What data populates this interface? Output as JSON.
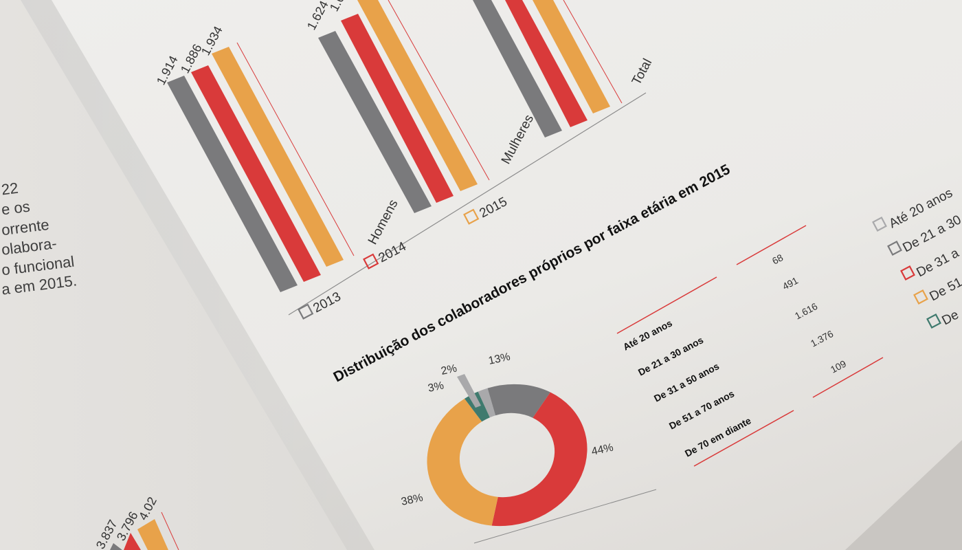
{
  "left_page": {
    "text_lines": [
      "22",
      "e os",
      "orrente",
      "olabora-",
      "o funcional",
      "a em 2015."
    ]
  },
  "bar_chart_top": {
    "chart_data": {
      "type": "bar",
      "categories": [
        "Homens",
        "Mulheres",
        "Total"
      ],
      "series": [
        {
          "name": "2013",
          "values": [
            1914,
            1624,
            null
          ],
          "color": "#7a7a7c"
        },
        {
          "name": "2014",
          "values": [
            1886,
            null,
            null
          ],
          "color": "#d93a3a"
        },
        {
          "name": "2015",
          "values": [
            1934,
            null,
            null
          ],
          "color": "#e8a24a"
        }
      ],
      "data_labels": [
        "1.914",
        "1.886",
        "1.934",
        "1.624",
        "1.6"
      ],
      "legend": [
        "2013",
        "2014",
        "2015"
      ]
    }
  },
  "donut": {
    "title": "Distribuição dos colaboradores próprios por faixa etária em 2015",
    "chart_data": {
      "type": "pie",
      "categories": [
        "Até 20 anos",
        "De 21 a 30 anos",
        "De 31 a 50 anos",
        "De 51 a 70 anos",
        "De 70 em diante"
      ],
      "values": [
        2,
        13,
        44,
        38,
        3
      ],
      "labels": [
        "2%",
        "13%",
        "44%",
        "38%",
        "3%"
      ],
      "colors": [
        "#a9a9ab",
        "#7a7a7c",
        "#d93a3a",
        "#e8a24a",
        "#3f7a6e"
      ]
    }
  },
  "age_table": {
    "rows": [
      {
        "label": "Até 20 anos",
        "value": "68"
      },
      {
        "label": "De 21 a 30 anos",
        "value": "491"
      },
      {
        "label": "De 31 a 50 anos",
        "value": "1.616"
      },
      {
        "label": "De 51 a 70 anos",
        "value": "1.376"
      },
      {
        "label": "De 70 em diante",
        "value": "109"
      }
    ]
  },
  "right_legend": {
    "items": [
      {
        "label": "Até 20 anos",
        "color": "#a9a9ab"
      },
      {
        "label": "De 21 a 30",
        "color": "#7a7a7c"
      },
      {
        "label": "De 31 a",
        "color": "#d93a3a"
      },
      {
        "label": "De 51",
        "color": "#e8a24a"
      },
      {
        "label": "De",
        "color": "#3f7a6e"
      }
    ]
  },
  "bottom_bars": {
    "data_labels": [
      "3.837",
      "3.796",
      "4.02"
    ]
  }
}
